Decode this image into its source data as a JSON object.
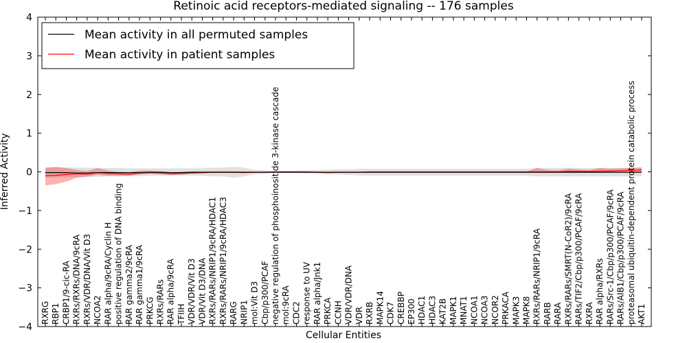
{
  "chart_data": {
    "type": "line",
    "title": "Retinoic acid receptors-mediated signaling -- 176 samples",
    "xlabel": "Cellular Entities",
    "ylabel": "Inferred Activity",
    "ylim": [
      -4,
      4
    ],
    "yticks": [
      -4,
      -3,
      -2,
      -1,
      0,
      1,
      2,
      3,
      4
    ],
    "ytick_labels": [
      "−4",
      "−3",
      "−2",
      "−1",
      "0",
      "1",
      "2",
      "3",
      "4"
    ],
    "legend_position": "top-left",
    "categories": [
      "RXRG",
      "RBP1",
      "CRBP1/9-cic-RA",
      "RXRs/RXRs/DNA/9cRA",
      "RXRs/VDR/DNA/Vit D3",
      "NCOA2",
      "RAR alpha/9cRA/Cyclin H",
      "positive regulation of DNA binding",
      "RAR gamma2/9cRA",
      "RAR gamma1/9cRA",
      "PRKCG",
      "RXRs/RARs",
      "RAR alpha/9cRA",
      "TFIIH",
      "VDR/VDR/Vit D3",
      "VDR/Vit D3/DNA",
      "RXRs/RARs/NRIP1/9cRA/HDAC1",
      "RXRs/RARs/NRIP1/9cRA/HDAC3",
      "RARG",
      "NRIP1",
      "mol:Vit D3",
      "Cbp/p300/PCAF",
      "negative regulation of phosphoinositide 3-kinase cascade",
      "mol:9cRA",
      "CDC2",
      "response to UV",
      "RAR alpha/Jnk1",
      "PRKCA",
      "CCNH",
      "VDR/VDR/DNA",
      "VDR",
      "RXRB",
      "MAPK14",
      "CDK7",
      "CREBBP",
      "EP300",
      "HDAC1",
      "HDAC3",
      "KAT2B",
      "MAPK1",
      "MNAT1",
      "NCOA1",
      "NCOA3",
      "NCOR2",
      "PRKACA",
      "MAPK3",
      "MAPK8",
      "RXRs/RARs/NRIP1/9cRA",
      "RARB",
      "RARA",
      "RXRs/RARs/SMRT(N-CoR2)/9cRA",
      "RARs/TIF2/Cbp/p300/PCAF/9cRA",
      "RXRA",
      "RAR alpha/RXRs",
      "RARs/Src-1/Cbp/p300/PCAF/9cRA",
      "RARs/AIB1/Cbp/p300/PCAF/9cRA",
      "proteasomal ubiquitin-dependent protein catabolic process",
      "AKT1"
    ],
    "series": [
      {
        "name": "Mean activity in all permuted samples",
        "color": "#000000",
        "values": [
          -0.02,
          -0.02,
          -0.02,
          -0.03,
          -0.03,
          -0.02,
          -0.02,
          -0.02,
          -0.02,
          -0.02,
          -0.01,
          -0.01,
          -0.02,
          -0.02,
          -0.01,
          -0.01,
          -0.01,
          -0.01,
          -0.01,
          -0.01,
          -0.01,
          -0.01,
          -0.01,
          -0.01,
          -0.01,
          -0.01,
          -0.01,
          -0.01,
          -0.01,
          -0.01,
          -0.01,
          -0.01,
          -0.01,
          -0.01,
          -0.01,
          -0.01,
          -0.01,
          -0.01,
          -0.01,
          -0.01,
          -0.01,
          -0.01,
          -0.01,
          -0.01,
          -0.01,
          -0.01,
          -0.01,
          -0.01,
          -0.01,
          -0.01,
          -0.01,
          -0.01,
          -0.01,
          -0.01,
          -0.01,
          -0.01,
          -0.01,
          -0.01
        ],
        "band_lower": [
          -0.15,
          -0.15,
          -0.14,
          -0.14,
          -0.14,
          -0.13,
          -0.12,
          -0.12,
          -0.11,
          -0.11,
          -0.1,
          -0.1,
          -0.1,
          -0.1,
          -0.1,
          -0.1,
          -0.12,
          -0.12,
          -0.15,
          -0.12,
          -0.06,
          -0.05,
          -0.02,
          -0.03,
          -0.03,
          -0.04,
          -0.05,
          -0.06,
          -0.07,
          -0.08,
          -0.09,
          -0.1,
          -0.1,
          -0.1,
          -0.1,
          -0.1,
          -0.1,
          -0.1,
          -0.1,
          -0.1,
          -0.1,
          -0.1,
          -0.1,
          -0.1,
          -0.1,
          -0.1,
          -0.1,
          -0.12,
          -0.12,
          -0.12,
          -0.12,
          -0.12,
          -0.12,
          -0.12,
          -0.12,
          -0.12,
          -0.12,
          -0.12
        ],
        "band_upper": [
          0.12,
          0.12,
          0.11,
          0.11,
          0.11,
          0.1,
          0.1,
          0.1,
          0.09,
          0.09,
          0.09,
          0.09,
          0.09,
          0.09,
          0.09,
          0.09,
          0.11,
          0.11,
          0.13,
          0.11,
          0.05,
          0.04,
          0.02,
          0.03,
          0.03,
          0.04,
          0.05,
          0.06,
          0.07,
          0.07,
          0.08,
          0.08,
          0.08,
          0.08,
          0.08,
          0.08,
          0.08,
          0.08,
          0.08,
          0.08,
          0.08,
          0.08,
          0.08,
          0.08,
          0.08,
          0.08,
          0.08,
          0.1,
          0.1,
          0.1,
          0.1,
          0.1,
          0.1,
          0.1,
          0.1,
          0.1,
          0.1,
          0.1
        ]
      },
      {
        "name": "Mean activity in patient samples",
        "color": "#ff0000",
        "values": [
          -0.1,
          -0.09,
          -0.07,
          -0.05,
          -0.06,
          -0.02,
          -0.04,
          -0.05,
          -0.06,
          -0.03,
          -0.02,
          -0.03,
          -0.05,
          -0.04,
          -0.03,
          -0.02,
          -0.01,
          -0.01,
          -0.01,
          -0.02,
          -0.01,
          -0.01,
          0.0,
          0.0,
          0.0,
          0.0,
          -0.01,
          -0.02,
          -0.01,
          -0.01,
          -0.01,
          0.0,
          0.0,
          0.0,
          0.0,
          0.0,
          0.0,
          0.0,
          0.0,
          0.0,
          0.0,
          0.0,
          0.0,
          0.0,
          0.0,
          0.0,
          0.0,
          0.0,
          0.0,
          0.0,
          0.01,
          0.01,
          0.01,
          0.02,
          0.02,
          0.03,
          0.04,
          0.05
        ],
        "band_lower": [
          -0.35,
          -0.32,
          -0.25,
          -0.15,
          -0.12,
          -0.08,
          -0.1,
          -0.1,
          -0.1,
          -0.07,
          -0.05,
          -0.06,
          -0.08,
          -0.07,
          -0.05,
          -0.04,
          -0.03,
          -0.03,
          -0.03,
          -0.03,
          -0.02,
          -0.02,
          -0.01,
          -0.01,
          -0.01,
          -0.01,
          -0.02,
          -0.03,
          -0.02,
          -0.02,
          -0.02,
          -0.01,
          -0.01,
          -0.01,
          -0.01,
          -0.01,
          -0.01,
          -0.01,
          -0.01,
          -0.01,
          -0.01,
          -0.01,
          -0.01,
          -0.01,
          -0.01,
          -0.01,
          -0.01,
          -0.02,
          -0.02,
          -0.02,
          -0.02,
          -0.02,
          -0.02,
          -0.03,
          -0.02,
          -0.02,
          -0.01,
          -0.01
        ],
        "band_upper": [
          0.1,
          0.13,
          0.1,
          0.05,
          0.02,
          0.1,
          0.03,
          0.0,
          -0.01,
          0.03,
          0.03,
          0.01,
          -0.01,
          0.0,
          0.01,
          0.01,
          0.02,
          0.02,
          0.02,
          0.01,
          0.01,
          0.01,
          0.01,
          0.01,
          0.01,
          0.01,
          0.01,
          0.0,
          0.01,
          0.01,
          0.01,
          0.01,
          0.01,
          0.01,
          0.01,
          0.01,
          0.01,
          0.01,
          0.01,
          0.01,
          0.01,
          0.01,
          0.01,
          0.01,
          0.01,
          0.01,
          0.01,
          0.1,
          0.05,
          0.04,
          0.08,
          0.06,
          0.05,
          0.1,
          0.08,
          0.09,
          0.1,
          0.12
        ]
      }
    ]
  }
}
